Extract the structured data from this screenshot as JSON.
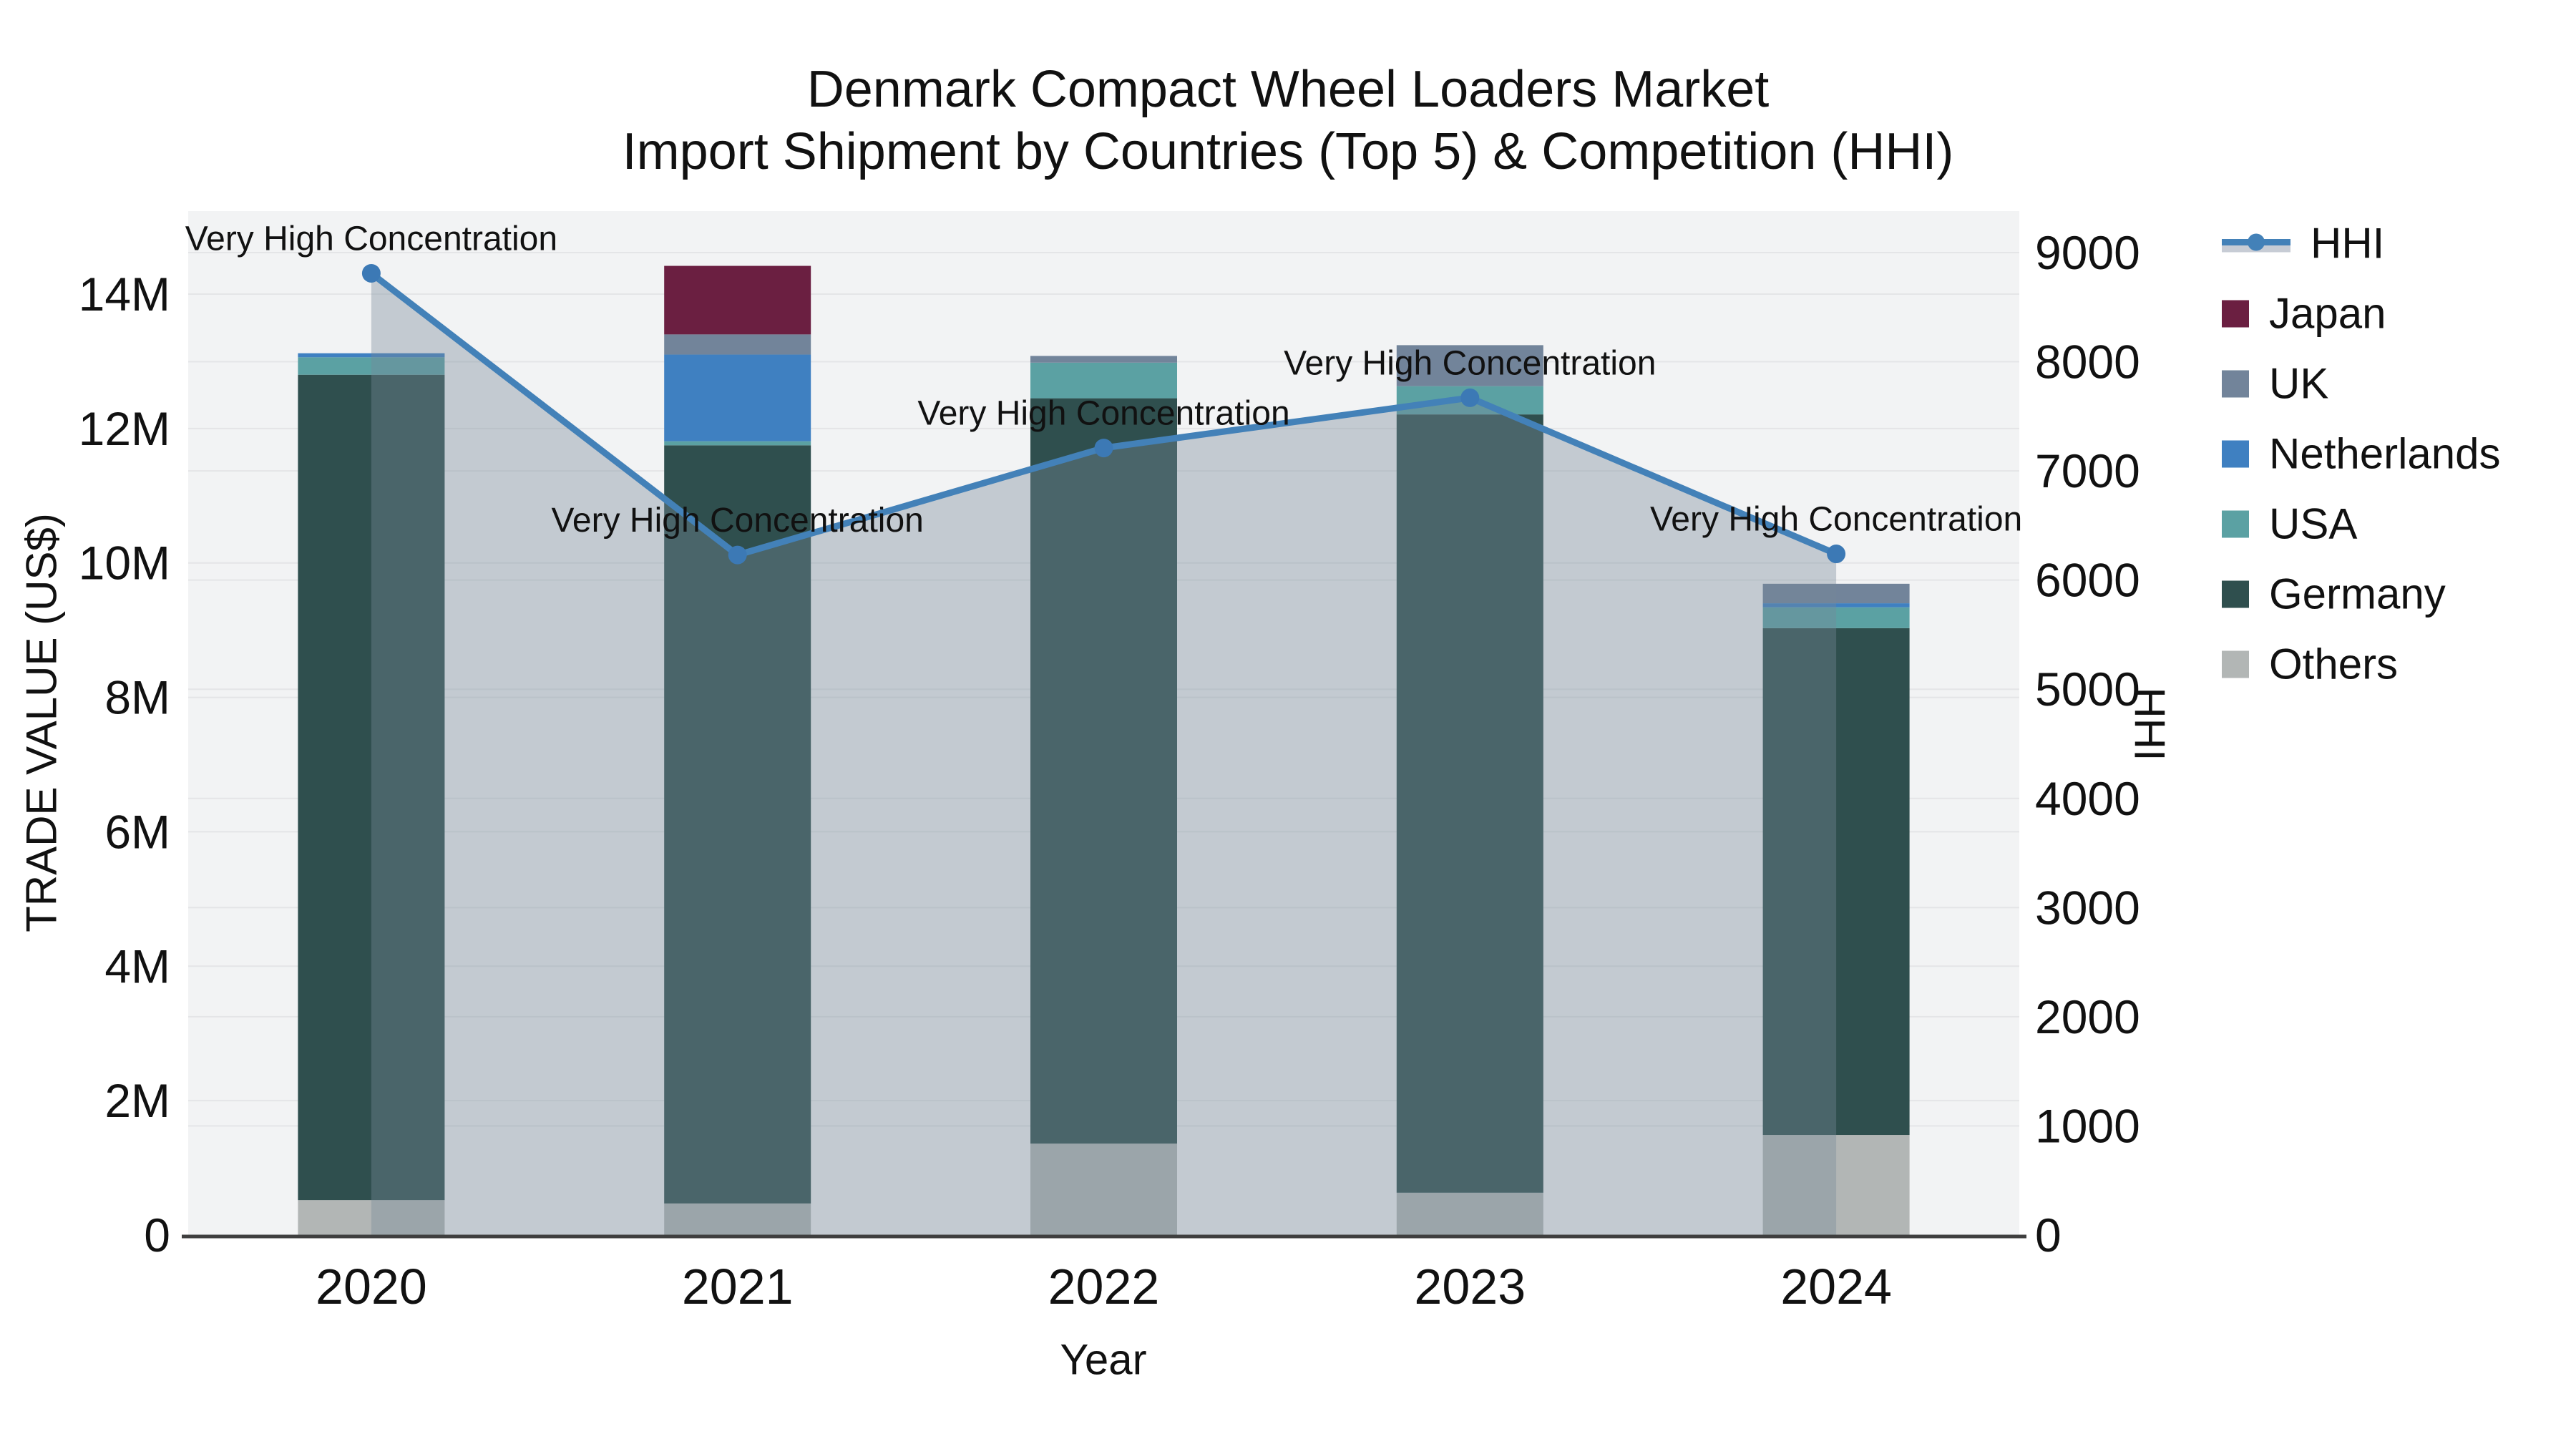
{
  "title": {
    "line1": "Denmark Compact Wheel Loaders Market",
    "line2": "Import Shipment by Countries (Top 5) & Competition (HHI)"
  },
  "legend": {
    "position": "right",
    "items": [
      {
        "label": "HHI",
        "type": "line",
        "color": "#4381B8"
      },
      {
        "label": "Japan",
        "type": "square",
        "color": "#6B1F41"
      },
      {
        "label": "UK",
        "type": "square",
        "color": "#72849A"
      },
      {
        "label": "Netherlands",
        "type": "square",
        "color": "#3F80C1"
      },
      {
        "label": "USA",
        "type": "square",
        "color": "#5BA1A3"
      },
      {
        "label": "Germany",
        "type": "square",
        "color": "#2F4F4E"
      },
      {
        "label": "Others",
        "type": "square",
        "color": "#B2B6B5"
      }
    ]
  },
  "chart_data": {
    "type": "bar",
    "combo": "stacked bars on left axis + HHI line with shaded area on right axis",
    "title": "Denmark Compact Wheel Loaders Market — Import Shipment by Countries (Top 5) & Competition (HHI)",
    "categories": [
      "2020",
      "2021",
      "2022",
      "2023",
      "2024"
    ],
    "bar_value_unit": "million US$",
    "series": [
      {
        "name": "Japan",
        "color": "#6B1F41",
        "values": [
          0,
          1.02,
          0,
          0,
          0
        ]
      },
      {
        "name": "UK",
        "color": "#72849A",
        "values": [
          0,
          0.3,
          0.1,
          0.61,
          0.29
        ]
      },
      {
        "name": "Netherlands",
        "color": "#3F80C1",
        "values": [
          0.06,
          1.29,
          0,
          0,
          0.06
        ]
      },
      {
        "name": "USA",
        "color": "#5BA1A3",
        "values": [
          0.26,
          0.06,
          0.53,
          0.42,
          0.31
        ]
      },
      {
        "name": "Germany",
        "color": "#2F4F4E",
        "values": [
          12.28,
          11.28,
          11.09,
          11.58,
          7.54
        ]
      },
      {
        "name": "Others",
        "color": "#B2B6B5",
        "values": [
          0.52,
          0.47,
          1.36,
          0.63,
          1.49
        ]
      }
    ],
    "stack_order_bottom_to_top": [
      "Others",
      "Germany",
      "USA",
      "Netherlands",
      "UK",
      "Japan"
    ],
    "line_series": {
      "name": "HHI",
      "axis": "right",
      "color": "#4381B8",
      "marker_color": "#3C79B5",
      "area_fill": "rgba(119,136,153,0.38)",
      "values": [
        8810,
        6230,
        7210,
        7670,
        6240
      ]
    },
    "annotations": [
      {
        "category": "2020",
        "text": "Very High Concentration"
      },
      {
        "category": "2021",
        "text": "Very High Concentration"
      },
      {
        "category": "2022",
        "text": "Very High Concentration"
      },
      {
        "category": "2023",
        "text": "Very High Concentration"
      },
      {
        "category": "2024",
        "text": "Very High Concentration"
      }
    ],
    "x": {
      "title": "Year"
    },
    "y_left": {
      "title": "TRADE VALUE (US$)",
      "range_millions": [
        0,
        14
      ],
      "ticks": [
        {
          "label": "0",
          "value": 0
        },
        {
          "label": "2M",
          "value": 2
        },
        {
          "label": "4M",
          "value": 4
        },
        {
          "label": "6M",
          "value": 6
        },
        {
          "label": "8M",
          "value": 8
        },
        {
          "label": "10M",
          "value": 10
        },
        {
          "label": "12M",
          "value": 12
        },
        {
          "label": "14M",
          "value": 14
        }
      ]
    },
    "y_right": {
      "title": "HHI",
      "range": [
        0,
        9000
      ],
      "ticks": [
        {
          "label": "0",
          "value": 0
        },
        {
          "label": "1000",
          "value": 1000
        },
        {
          "label": "2000",
          "value": 2000
        },
        {
          "label": "3000",
          "value": 3000
        },
        {
          "label": "4000",
          "value": 4000
        },
        {
          "label": "5000",
          "value": 5000
        },
        {
          "label": "6000",
          "value": 6000
        },
        {
          "label": "7000",
          "value": 7000
        },
        {
          "label": "8000",
          "value": 8000
        },
        {
          "label": "9000",
          "value": 9000
        }
      ]
    },
    "grid": true,
    "plot_background": "#F2F3F4",
    "gridline_color": "#E4E5E7",
    "axis_line_color": "#3F3F3F",
    "legend_position": "right"
  }
}
